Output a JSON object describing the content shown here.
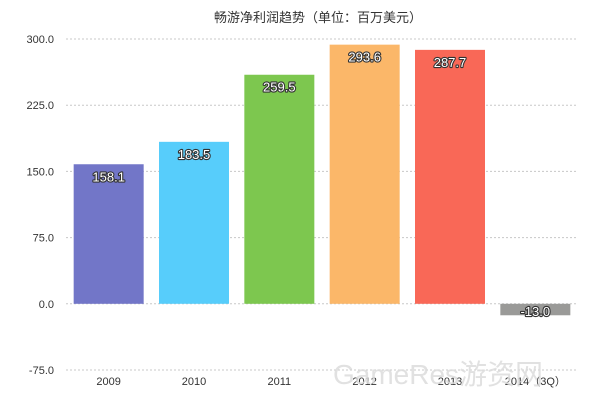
{
  "chart_data": {
    "type": "bar",
    "title": "畅游净利润趋势（单位：百万美元）",
    "xlabel": "",
    "ylabel": "",
    "categories": [
      "2009",
      "2010",
      "2011",
      "2012",
      "2013",
      "2014（3Q）"
    ],
    "values": [
      158.1,
      183.5,
      259.5,
      293.6,
      287.7,
      -13.0
    ],
    "value_labels": [
      "158.1",
      "183.5",
      "259.5",
      "293.6",
      "287.7",
      "-13.0"
    ],
    "colors": [
      "#7276c8",
      "#57cdfb",
      "#7dc74f",
      "#fbb769",
      "#f96857",
      "#9a9a98"
    ],
    "ylim": [
      -75,
      300
    ],
    "yticks": [
      300,
      225,
      150,
      75,
      0,
      -75
    ],
    "ytick_labels": [
      "300.0",
      "225.0",
      "150.0",
      "75.0",
      "0.0",
      "-75.0"
    ],
    "grid": true,
    "legend": "none"
  },
  "watermark": "GameRes游资网"
}
